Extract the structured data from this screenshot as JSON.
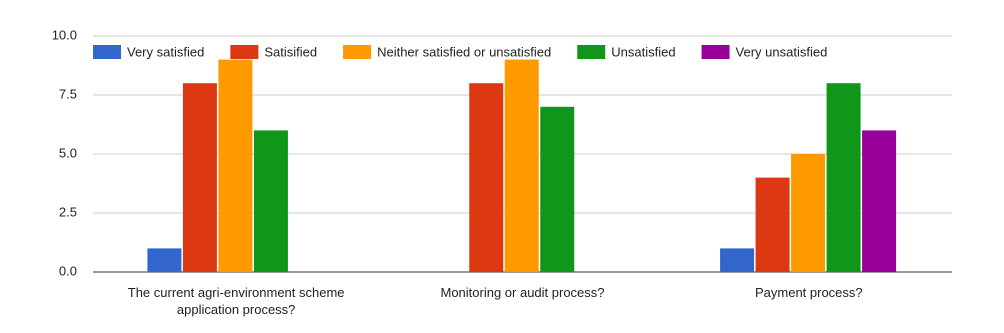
{
  "chart_data": {
    "type": "bar",
    "categories": [
      "The current agri-environment scheme application process?",
      "Monitoring or audit process?",
      "Payment process?"
    ],
    "series": [
      {
        "name": "Very satisfied",
        "color": "#3366cc",
        "values": [
          1,
          0,
          1
        ]
      },
      {
        "name": "Satisified",
        "color": "#dc3912",
        "values": [
          8,
          8,
          4
        ]
      },
      {
        "name": "Neither satisfied or unsatisfied",
        "color": "#ff9900",
        "values": [
          9,
          9,
          5
        ]
      },
      {
        "name": "Unsatisfied",
        "color": "#109618",
        "values": [
          6,
          7,
          8
        ]
      },
      {
        "name": "Very unsatisfied",
        "color": "#990099",
        "values": [
          0,
          0,
          6
        ]
      }
    ],
    "ylim": [
      0,
      10
    ],
    "yticks": [
      {
        "value": 0,
        "label": "0.0"
      },
      {
        "value": 2.5,
        "label": "2.5"
      },
      {
        "value": 5,
        "label": "5.0"
      },
      {
        "value": 7.5,
        "label": "7.5"
      },
      {
        "value": 10,
        "label": "10.0"
      }
    ],
    "grid": true,
    "legend": "top"
  }
}
